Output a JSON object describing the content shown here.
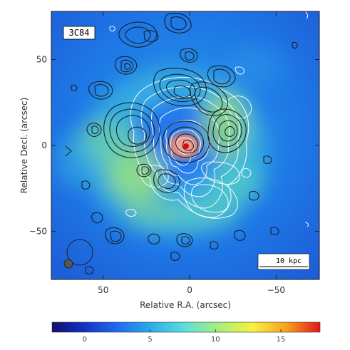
{
  "chart_data": {
    "type": "heatmap",
    "panel_label": "3C84",
    "xlabel": "Relative R.A. (arcsec)",
    "ylabel": "Relative Decl. (arcsec)",
    "xlim": [
      80,
      -75
    ],
    "ylim": [
      -78,
      78
    ],
    "x_ticks": [
      {
        "value": 50,
        "label": "50"
      },
      {
        "value": 0,
        "label": "0"
      },
      {
        "value": -50,
        "label": "−50"
      }
    ],
    "y_ticks": [
      {
        "value": 50,
        "label": "50"
      },
      {
        "value": 0,
        "label": "0"
      },
      {
        "value": -50,
        "label": "−50"
      }
    ],
    "scale_bar": {
      "label": "10 kpc",
      "length_arcsec": 28
    },
    "colorbar": {
      "range": [
        -2.5,
        18
      ],
      "ticks": [
        {
          "value": 0,
          "label": "0"
        },
        {
          "value": 5,
          "label": "5"
        },
        {
          "value": 10,
          "label": "10"
        },
        {
          "value": 15,
          "label": "15"
        }
      ],
      "colors": [
        "#10106a",
        "#1234c8",
        "#1f6ff0",
        "#2faee8",
        "#5fe0d8",
        "#a8f078",
        "#f8f040",
        "#f8a020",
        "#e01818"
      ]
    },
    "core_marker_color": "#d01010",
    "contour_colors": {
      "black": "#151515",
      "white": "#ffffff"
    }
  }
}
